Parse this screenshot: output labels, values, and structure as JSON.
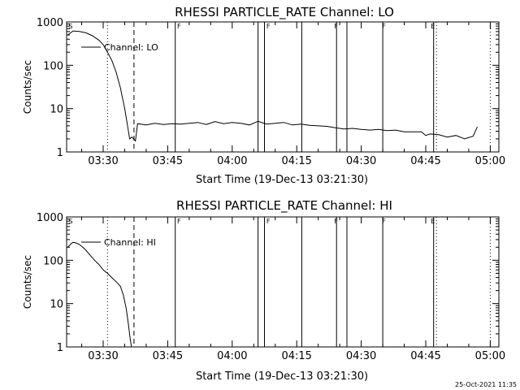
{
  "footer_timestamp": "25-Oct-2021 11:35",
  "chart_data": [
    {
      "type": "line",
      "title": "RHESSI PARTICLE_RATE Channel: LO",
      "xlabel": "Start Time (19-Dec-13 03:21:30)",
      "ylabel": "Counts/sec",
      "yscale": "log",
      "ylim": [
        1,
        1000
      ],
      "xlim": [
        "03:21:30",
        "05:02:00"
      ],
      "x_ticks": [
        "03:30",
        "03:45",
        "04:00",
        "04:15",
        "04:30",
        "04:45",
        "05:00"
      ],
      "y_ticks": [
        "1",
        "10",
        "100",
        "1000"
      ],
      "legend": {
        "placement": "top-left",
        "entries": [
          "Channel: LO"
        ]
      },
      "series": [
        {
          "name": "Channel: LO",
          "x": [
            "03:21:45",
            "03:23:00",
            "03:24:30",
            "03:26:00",
            "03:27:30",
            "03:29:00",
            "03:30:00",
            "03:31:00",
            "03:32:00",
            "03:33:00",
            "03:34:00",
            "03:35:00",
            "03:35:40",
            "03:36:10",
            "03:36:40",
            "03:37:30",
            "03:38:00",
            "03:40:00",
            "03:42:00",
            "03:44:00",
            "03:46:00",
            "03:48:00",
            "03:50:00",
            "03:52:00",
            "03:54:00",
            "03:56:00",
            "03:58:00",
            "04:00:00",
            "04:02:00",
            "04:04:00",
            "04:06:00",
            "04:08:00",
            "04:10:00",
            "04:12:00",
            "04:14:00",
            "04:16:00",
            "04:18:00",
            "04:20:00",
            "04:22:00",
            "04:24:00",
            "04:26:00",
            "04:28:00",
            "04:30:00",
            "04:32:00",
            "04:34:00",
            "04:36:00",
            "04:38:00",
            "04:40:00",
            "04:42:00",
            "04:44:00",
            "04:45:00",
            "04:46:00",
            "04:48:00",
            "04:50:00",
            "04:52:00",
            "04:54:00",
            "04:56:00",
            "04:57:00"
          ],
          "y": [
            500,
            620,
            600,
            560,
            480,
            380,
            300,
            200,
            130,
            70,
            30,
            10,
            4,
            2.0,
            2.2,
            1.8,
            4.5,
            4.2,
            4.6,
            4.3,
            4.5,
            4.4,
            4.6,
            4.8,
            4.3,
            5.0,
            4.5,
            4.8,
            4.6,
            4.2,
            5.1,
            4.4,
            4.6,
            4.8,
            4.2,
            4.4,
            4.1,
            4.0,
            3.9,
            3.6,
            3.4,
            3.5,
            3.3,
            3.2,
            3.3,
            3.1,
            3.2,
            2.9,
            2.9,
            2.9,
            2.4,
            2.6,
            2.5,
            2.2,
            2.4,
            2.0,
            2.3,
            3.8
          ]
        }
      ],
      "annotations": {
        "flag_labels": [
          {
            "label": "S",
            "x": "03:21:45"
          },
          {
            "label": "F",
            "x": "03:47:00"
          },
          {
            "label": "F",
            "x": "04:07:45"
          },
          {
            "label": "F",
            "x": "04:23:30"
          },
          {
            "label": "F",
            "x": "04:34:40"
          },
          {
            "label": "E",
            "x": "04:46:00"
          }
        ],
        "solid_lines": [
          "03:46:45",
          "04:06:00",
          "04:07:30",
          "04:16:10",
          "04:24:15",
          "04:26:40",
          "04:35:00",
          "04:46:50"
        ],
        "dashed_lines": [
          "03:37:10"
        ],
        "dotted_lines": [
          "03:31:00",
          "04:47:30",
          "05:00:00"
        ]
      }
    },
    {
      "type": "line",
      "title": "RHESSI PARTICLE_RATE Channel: HI",
      "xlabel": "Start Time (19-Dec-13 03:21:30)",
      "ylabel": "Counts/sec",
      "yscale": "log",
      "ylim": [
        1,
        1000
      ],
      "xlim": [
        "03:21:30",
        "05:02:00"
      ],
      "x_ticks": [
        "03:30",
        "03:45",
        "04:00",
        "04:15",
        "04:30",
        "04:45",
        "05:00"
      ],
      "y_ticks": [
        "1",
        "10",
        "100",
        "1000"
      ],
      "legend": {
        "placement": "top-left",
        "entries": [
          "Channel: HI"
        ]
      },
      "series": [
        {
          "name": "Channel: HI",
          "x": [
            "03:21:45",
            "03:22:30",
            "03:23:00",
            "03:23:45",
            "03:24:30",
            "03:25:15",
            "03:26:00",
            "03:27:00",
            "03:28:00",
            "03:29:00",
            "03:30:00",
            "03:31:00",
            "03:32:00",
            "03:33:00",
            "03:34:00",
            "03:34:40",
            "03:35:20",
            "03:35:50",
            "03:36:15",
            "03:36:35"
          ],
          "y": [
            200,
            240,
            260,
            250,
            230,
            200,
            170,
            130,
            100,
            80,
            60,
            50,
            40,
            32,
            25,
            16,
            8,
            3.5,
            1.6,
            1.0
          ]
        }
      ],
      "annotations": {
        "flag_labels": [
          {
            "label": "S",
            "x": "03:21:45"
          },
          {
            "label": "F",
            "x": "03:47:00"
          },
          {
            "label": "F",
            "x": "04:07:45"
          },
          {
            "label": "F",
            "x": "04:23:30"
          },
          {
            "label": "F",
            "x": "04:34:40"
          },
          {
            "label": "E",
            "x": "04:46:00"
          }
        ],
        "solid_lines": [
          "03:46:45",
          "04:06:00",
          "04:07:30",
          "04:16:10",
          "04:24:15",
          "04:26:40",
          "04:35:00",
          "04:46:50"
        ],
        "dashed_lines": [
          "03:37:10"
        ],
        "dotted_lines": [
          "03:31:00",
          "04:47:30",
          "05:00:00"
        ]
      }
    }
  ]
}
